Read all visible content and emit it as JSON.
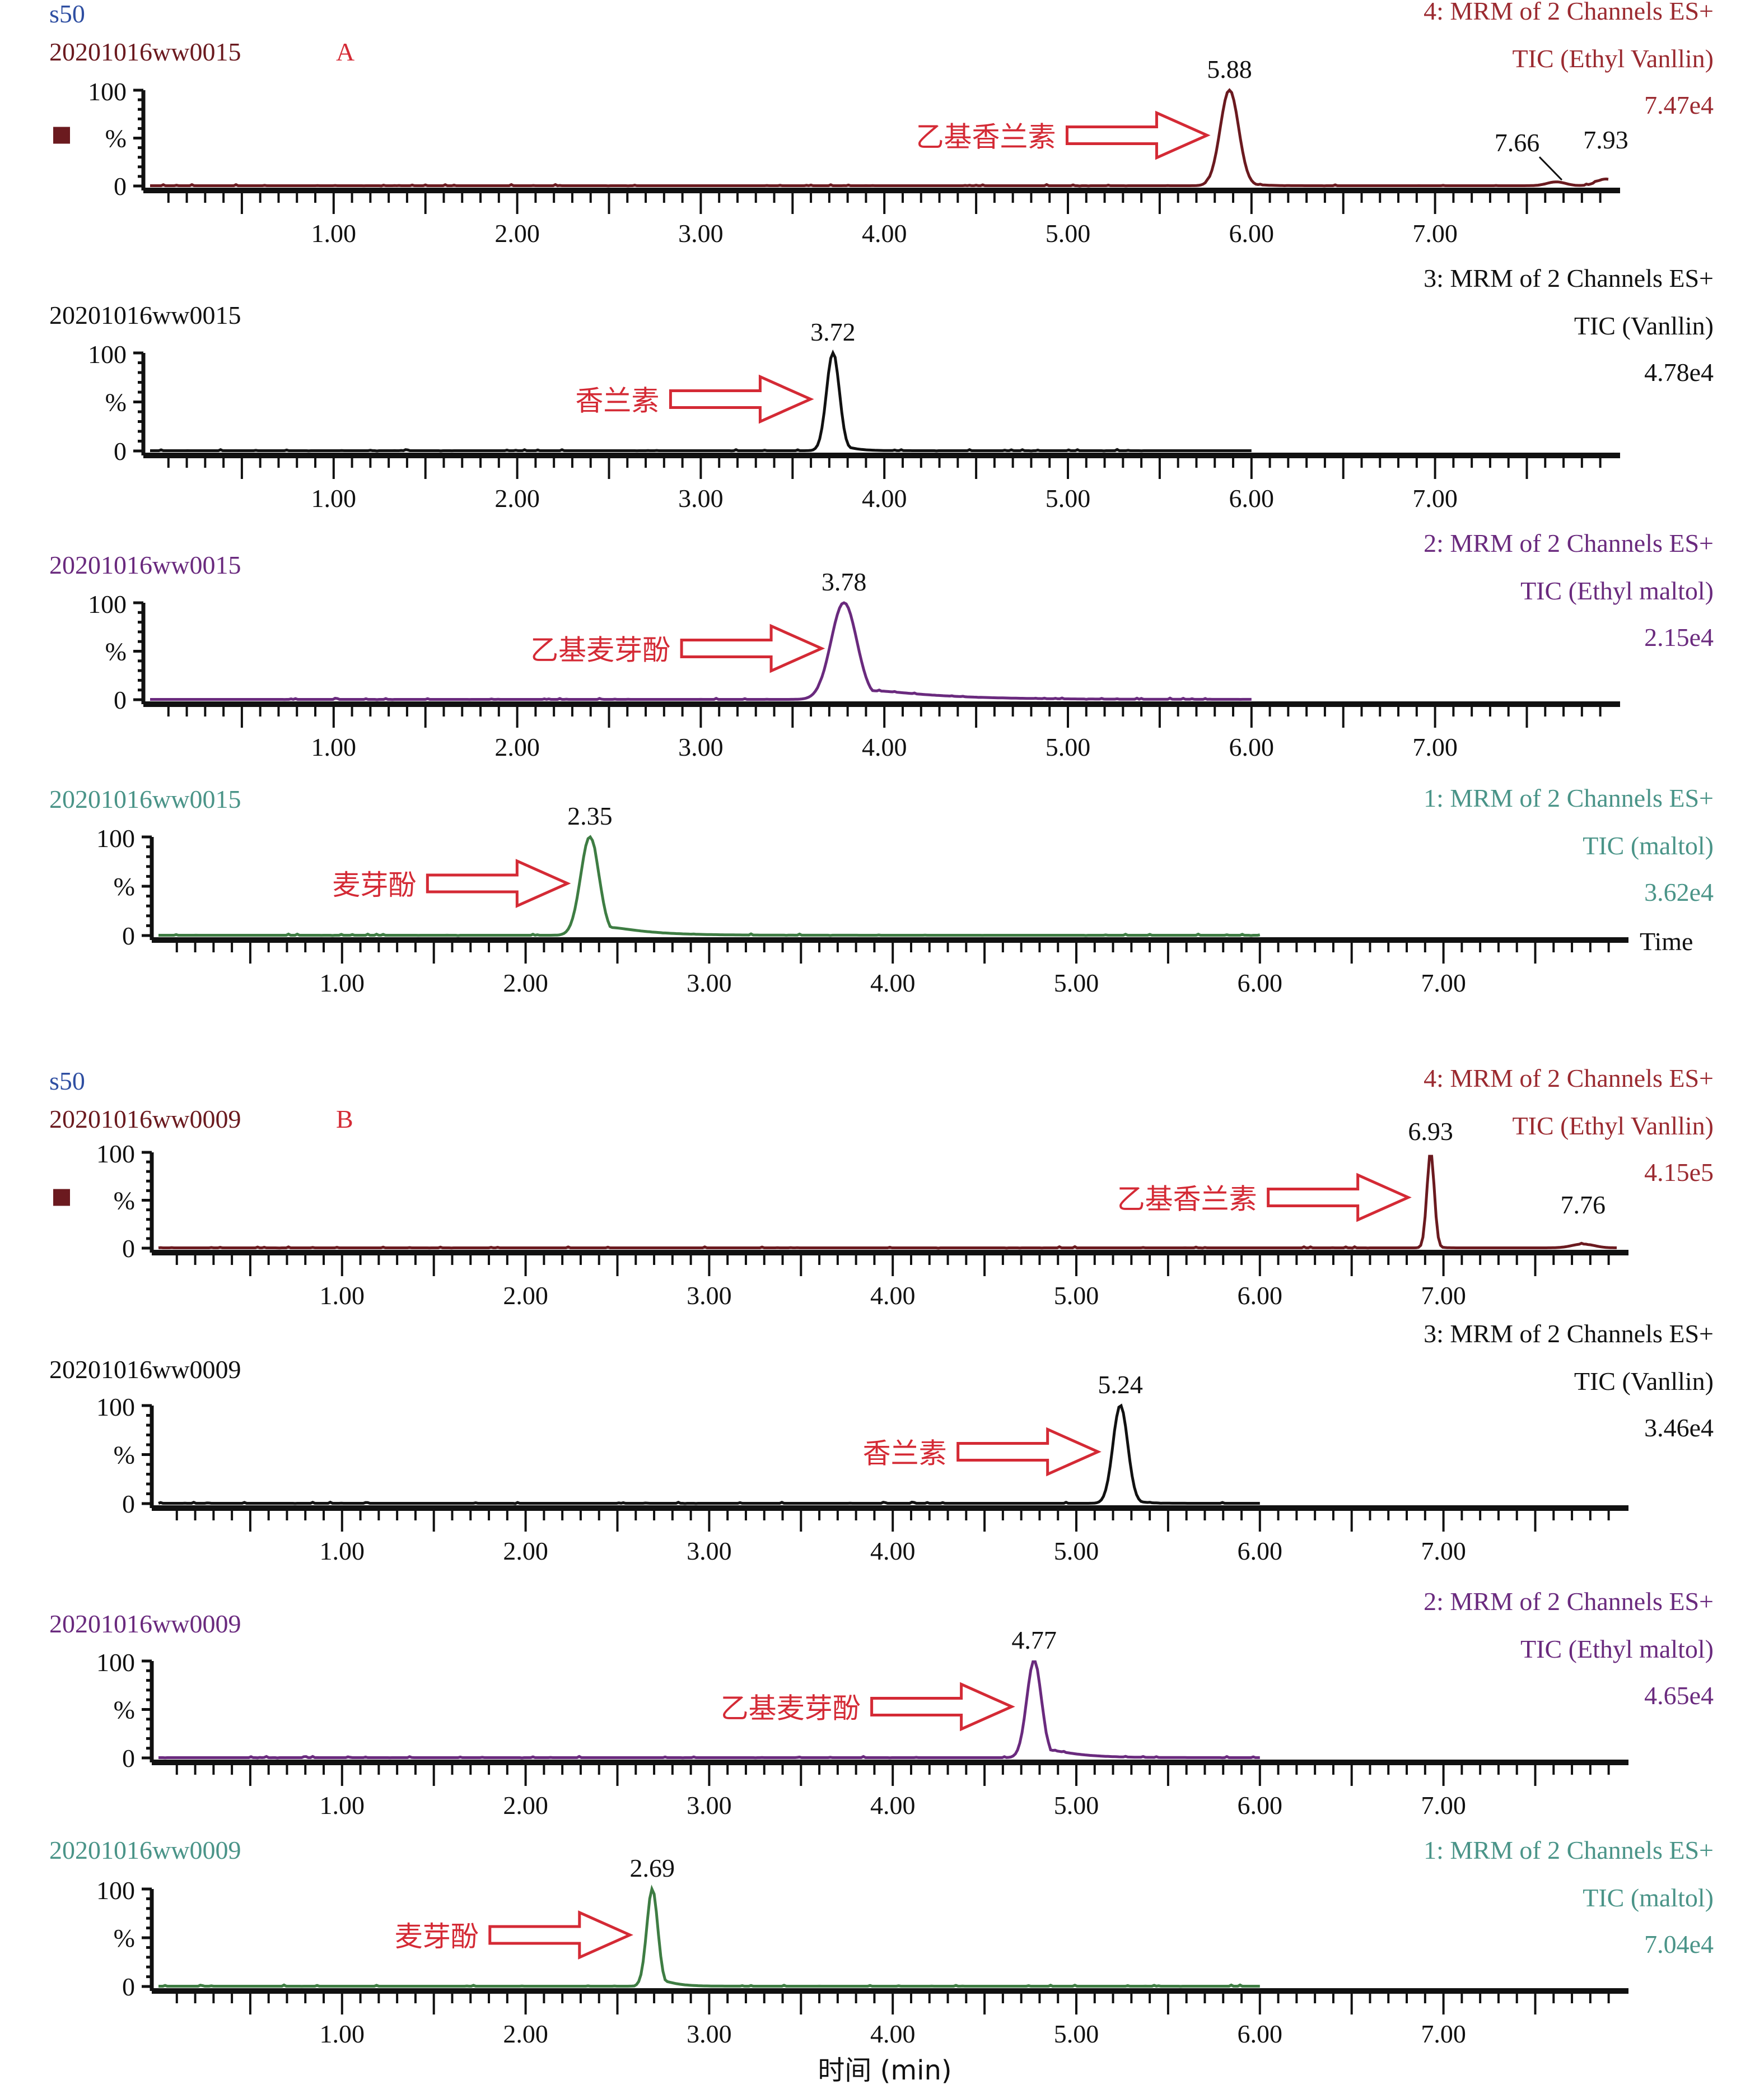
{
  "figure": {
    "xlabel": "时间 (min)",
    "arrow_color": "#d42a35",
    "axis_color": "#111111",
    "y_tick_labels": [
      "100",
      "%",
      "0"
    ]
  },
  "chart_data": [
    {
      "type": "line",
      "group": "A",
      "group_label": "A",
      "header": "s50",
      "header_color": "#2f4fa2",
      "sample": "20201016ww0015",
      "channel": "4: MRM of 2 Channels ES+",
      "trace": "TIC (Ethyl Vanllin)",
      "intensity": "7.47e4",
      "color": "#6b1a1f",
      "label_color": "#9b2a30",
      "show_marker": true,
      "compound": "乙基香兰素",
      "peaks": [
        {
          "rt": 5.88,
          "height": 100,
          "width": 0.05,
          "tail": 0.06,
          "label": "5.88"
        },
        {
          "rt": 7.66,
          "height": 4,
          "width": 0.05,
          "tail": 0.0,
          "label": "7.66"
        },
        {
          "rt": 7.93,
          "height": 7,
          "width": 0.05,
          "tail": 0.0,
          "label": "7.93"
        }
      ],
      "trace_end": 7.95,
      "xlim": [
        0,
        7.95
      ],
      "ylim": [
        0,
        100
      ],
      "xticks": [
        "1.00",
        "2.00",
        "3.00",
        "4.00",
        "5.00",
        "6.00",
        "7.00"
      ],
      "show_time": false
    },
    {
      "type": "line",
      "group": "A",
      "sample": "20201016ww0015",
      "channel": "3: MRM of 2 Channels ES+",
      "trace": "TIC (Vanllin)",
      "intensity": "4.78e4",
      "color": "#111111",
      "label_color": "#111111",
      "compound": "香兰素",
      "peaks": [
        {
          "rt": 3.72,
          "height": 100,
          "width": 0.035,
          "tail": 0.06,
          "label": "3.72"
        }
      ],
      "trace_end": 6.0,
      "xlim": [
        0,
        7.95
      ],
      "ylim": [
        0,
        100
      ],
      "xticks": [
        "1.00",
        "2.00",
        "3.00",
        "4.00",
        "5.00",
        "6.00",
        "7.00"
      ],
      "show_time": false
    },
    {
      "type": "line",
      "group": "A",
      "sample": "20201016ww0015",
      "channel": "2: MRM of 2 Channels ES+",
      "trace": "TIC (Ethyl maltol)",
      "intensity": "2.15e4",
      "color": "#6a2a7e",
      "label_color": "#6a2a7e",
      "compound": "乙基麦芽酚",
      "peaks": [
        {
          "rt": 3.78,
          "height": 100,
          "width": 0.07,
          "tail": 0.35,
          "label": "3.78"
        }
      ],
      "trace_end": 6.0,
      "xlim": [
        0,
        7.95
      ],
      "ylim": [
        0,
        100
      ],
      "xticks": [
        "1.00",
        "2.00",
        "3.00",
        "4.00",
        "5.00",
        "6.00",
        "7.00"
      ],
      "show_time": false
    },
    {
      "type": "line",
      "group": "A",
      "sample": "20201016ww0015",
      "channel": "1: MRM of 2 Channels ES+",
      "trace": "TIC (maltol)",
      "intensity": "3.62e4",
      "color": "#3e7d43",
      "label_color": "#4a9488",
      "compound": "麦芽酚",
      "peaks": [
        {
          "rt": 2.35,
          "height": 100,
          "width": 0.05,
          "tail": 0.2,
          "label": "2.35"
        }
      ],
      "trace_end": 6.0,
      "xlim": [
        0,
        7.95
      ],
      "ylim": [
        0,
        100
      ],
      "xticks": [
        "1.00",
        "2.00",
        "3.00",
        "4.00",
        "5.00",
        "6.00",
        "7.00"
      ],
      "show_time": true,
      "time_label": "Time"
    },
    {
      "type": "line",
      "group": "B",
      "group_label": "B",
      "header": "s50",
      "header_color": "#2f4fa2",
      "sample": "20201016ww0009",
      "channel": "4: MRM of 2 Channels ES+",
      "trace": "TIC (Ethyl Vanllin)",
      "intensity": "4.15e5",
      "color": "#6b1a1f",
      "label_color": "#9b2a30",
      "show_marker": true,
      "compound": "乙基香兰素",
      "peaks": [
        {
          "rt": 6.93,
          "height": 100,
          "width": 0.02,
          "tail": 0.02,
          "label": "6.93"
        },
        {
          "rt": 7.76,
          "height": 4,
          "width": 0.06,
          "tail": 0.0,
          "label": "7.76"
        }
      ],
      "trace_end": 7.95,
      "xlim": [
        0,
        7.95
      ],
      "ylim": [
        0,
        100
      ],
      "xticks": [
        "1.00",
        "2.00",
        "3.00",
        "4.00",
        "5.00",
        "6.00",
        "7.00"
      ],
      "show_time": false
    },
    {
      "type": "line",
      "group": "B",
      "sample": "20201016ww0009",
      "channel": "3: MRM of 2 Channels ES+",
      "trace": "TIC (Vanllin)",
      "intensity": "3.46e4",
      "color": "#111111",
      "label_color": "#111111",
      "compound": "香兰素",
      "peaks": [
        {
          "rt": 5.24,
          "height": 100,
          "width": 0.04,
          "tail": 0.05,
          "label": "5.24"
        }
      ],
      "trace_end": 6.0,
      "xlim": [
        0,
        7.95
      ],
      "ylim": [
        0,
        100
      ],
      "xticks": [
        "1.00",
        "2.00",
        "3.00",
        "4.00",
        "5.00",
        "6.00",
        "7.00"
      ],
      "show_time": false
    },
    {
      "type": "line",
      "group": "B",
      "sample": "20201016ww0009",
      "channel": "2: MRM of 2 Channels ES+",
      "trace": "TIC (Ethyl maltol)",
      "intensity": "4.65e4",
      "color": "#6a2a7e",
      "label_color": "#6a2a7e",
      "compound": "乙基麦芽酚",
      "peaks": [
        {
          "rt": 4.77,
          "height": 100,
          "width": 0.04,
          "tail": 0.15,
          "label": "4.77"
        }
      ],
      "trace_end": 6.0,
      "xlim": [
        0,
        7.95
      ],
      "ylim": [
        0,
        100
      ],
      "xticks": [
        "1.00",
        "2.00",
        "3.00",
        "4.00",
        "5.00",
        "6.00",
        "7.00"
      ],
      "show_time": false
    },
    {
      "type": "line",
      "group": "B",
      "sample": "20201016ww0009",
      "channel": "1: MRM of 2 Channels ES+",
      "trace": "TIC (maltol)",
      "intensity": "7.04e4",
      "color": "#3e7d43",
      "label_color": "#4a9488",
      "compound": "麦芽酚",
      "peaks": [
        {
          "rt": 2.69,
          "height": 100,
          "width": 0.03,
          "tail": 0.07,
          "label": "2.69"
        }
      ],
      "trace_end": 6.0,
      "xlim": [
        0,
        7.95
      ],
      "ylim": [
        0,
        100
      ],
      "xticks": [
        "1.00",
        "2.00",
        "3.00",
        "4.00",
        "5.00",
        "6.00",
        "7.00"
      ],
      "show_time": false
    }
  ]
}
